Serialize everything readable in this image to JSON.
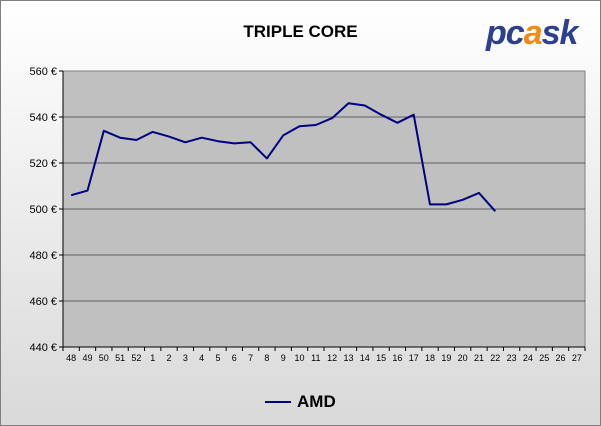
{
  "chart_data": {
    "type": "line",
    "title": "TRIPLE CORE",
    "logo_text": "pcask",
    "categories": [
      "48",
      "49",
      "50",
      "51",
      "52",
      "1",
      "2",
      "3",
      "4",
      "5",
      "6",
      "7",
      "8",
      "9",
      "10",
      "11",
      "12",
      "13",
      "14",
      "15",
      "16",
      "17",
      "18",
      "19",
      "20",
      "21",
      "22",
      "23",
      "24",
      "25",
      "26",
      "27"
    ],
    "series": [
      {
        "name": "AMD",
        "color": "#000080",
        "values": [
          506,
          508,
          534,
          531,
          530,
          533.5,
          531.5,
          529,
          531,
          529.5,
          528.5,
          529,
          522,
          532,
          536,
          536.5,
          539.5,
          546,
          545,
          541,
          537.5,
          541,
          502,
          502,
          504,
          507,
          499,
          null,
          null,
          null,
          null,
          null
        ]
      }
    ],
    "ylim": [
      440,
      560
    ],
    "yticks": [
      440,
      460,
      480,
      500,
      520,
      540,
      560
    ],
    "y_tick_suffix": " €",
    "grid": true,
    "legend_position": "bottom",
    "plot_background": "#c0c0c0"
  }
}
